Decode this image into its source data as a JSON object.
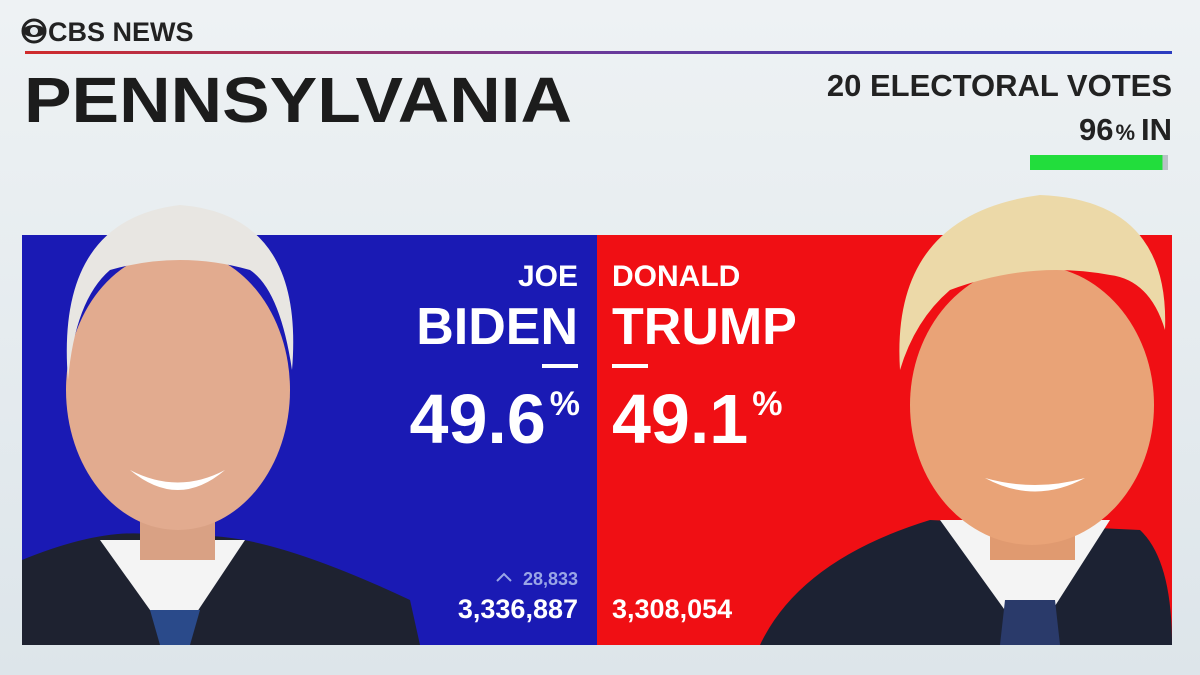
{
  "network": "CBS NEWS",
  "state": "PENNSYLVANIA",
  "electoral_votes": "20 ELECTORAL VOTES",
  "reporting": {
    "percent": 96,
    "sign": "%",
    "suffix": "IN"
  },
  "candidates": [
    {
      "first": "JOE",
      "last": "BIDEN",
      "percent": 49.6,
      "sign": "%",
      "lead": "28,833",
      "votes": "3,336,887"
    },
    {
      "first": "DONALD",
      "last": "TRUMP",
      "percent": 49.1,
      "sign": "%",
      "votes": "3,308,054"
    }
  ]
}
